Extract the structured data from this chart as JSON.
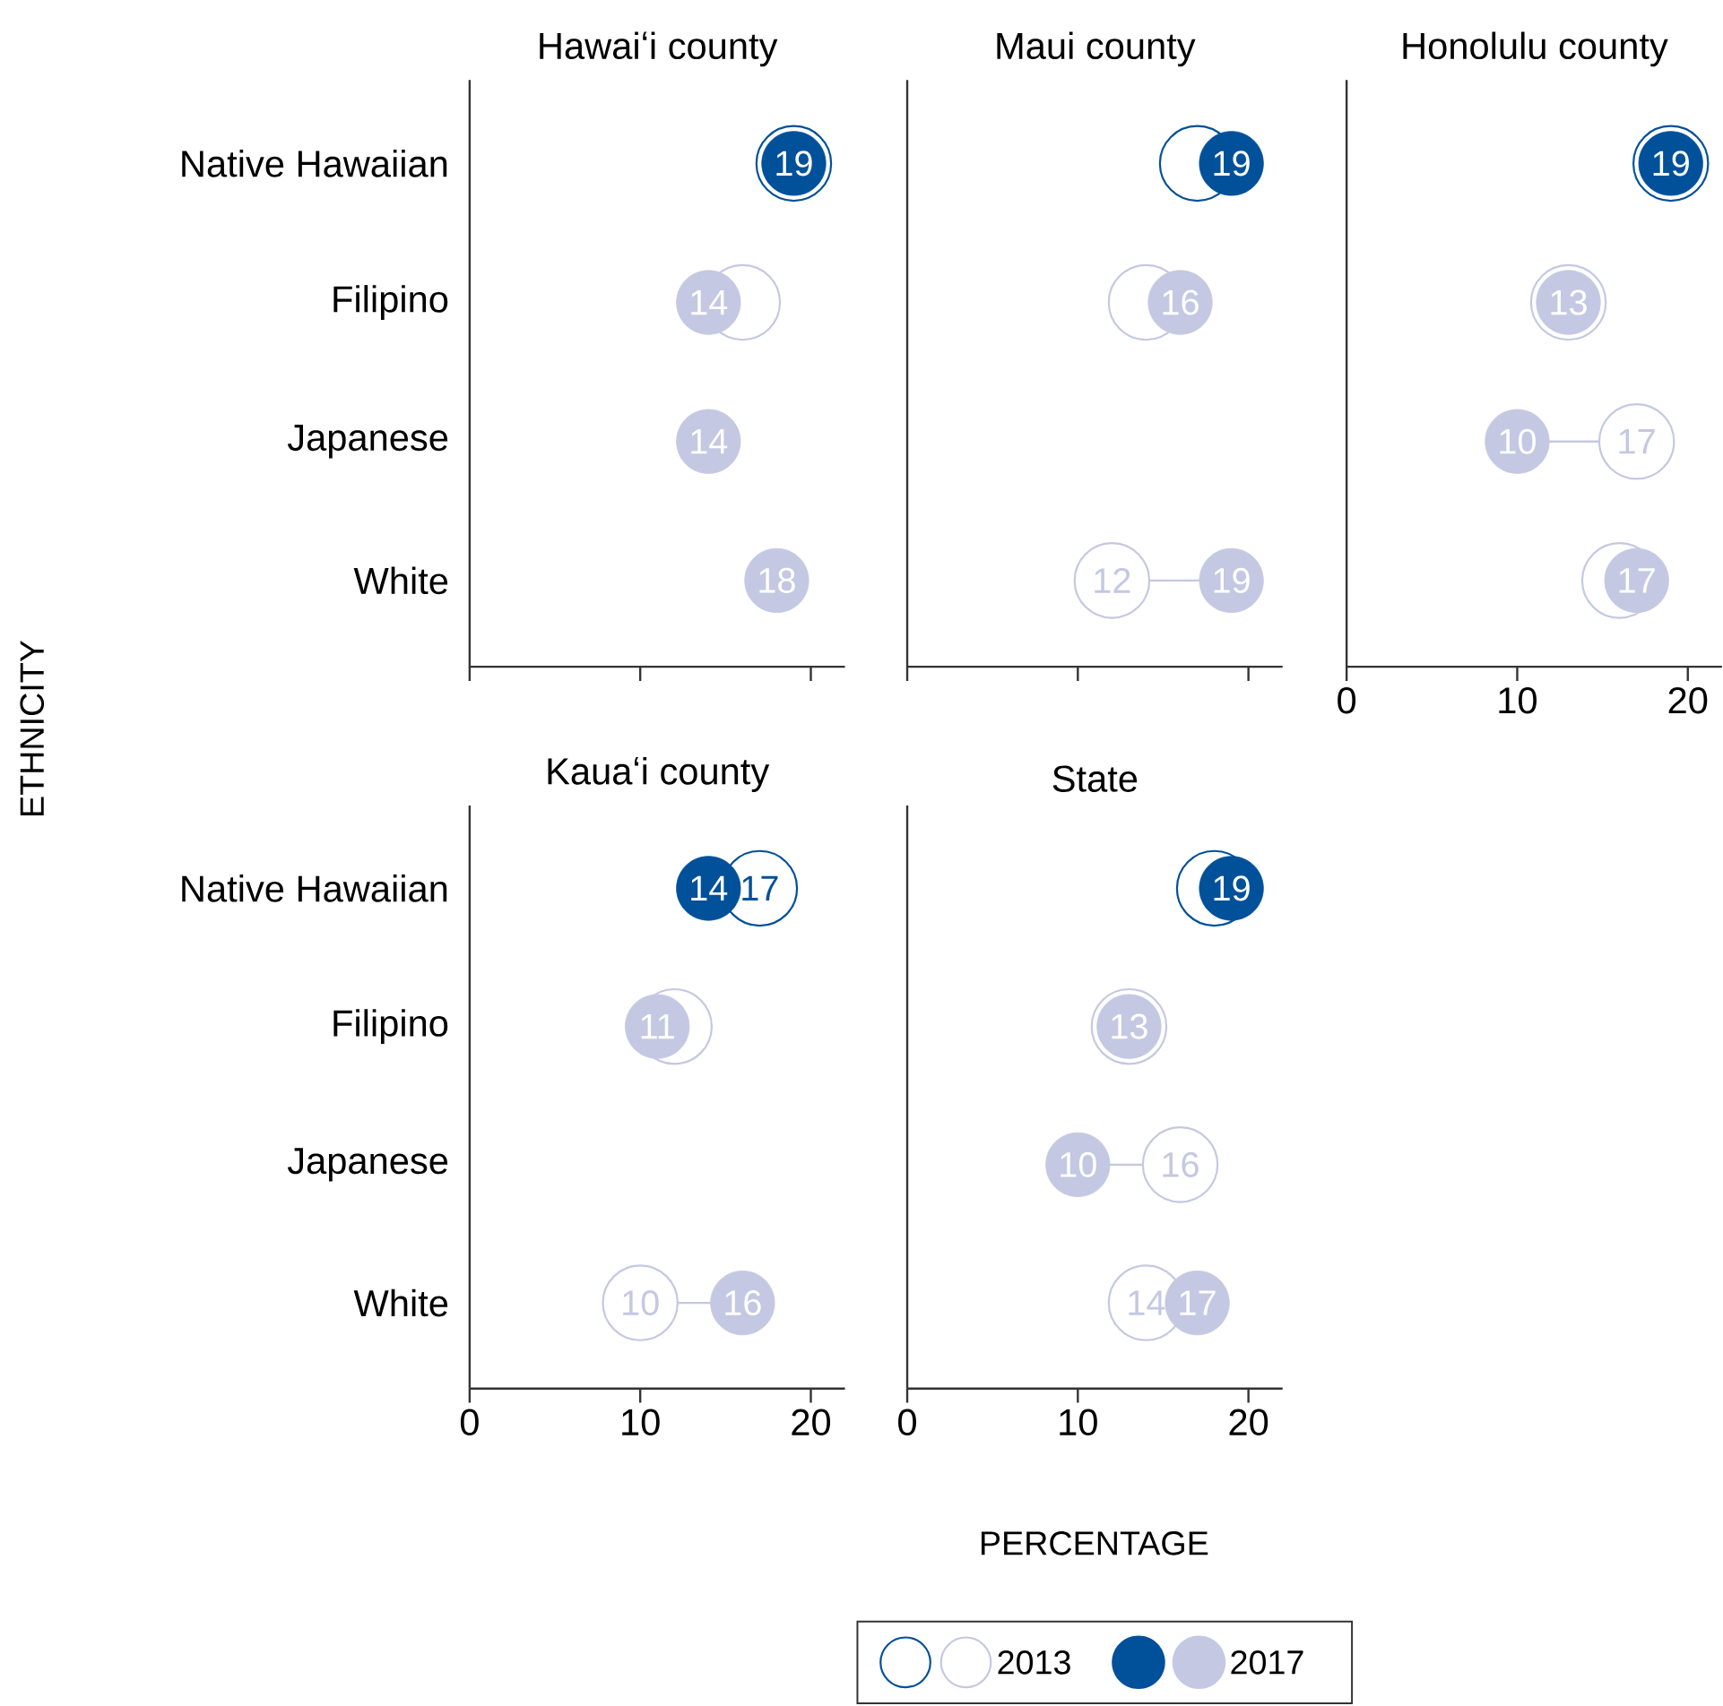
{
  "chart_data": [
    {
      "type": "scatter",
      "orientation": "horizontal",
      "title": "Hawaiʻi county",
      "ylabel": "ETHNICITY",
      "categories": [
        "Native Hawaiian",
        "Filipino",
        "Japanese",
        "White"
      ],
      "xlim": [
        0,
        22
      ],
      "xticks": [
        0,
        10,
        20
      ],
      "tick_labels": "y",
      "series": [
        {
          "marker": "circle-open",
          "colors": [
            "#00509a",
            "#c4c8e2",
            "#c4c8e2",
            "#c4c8e2"
          ],
          "values": [
            19,
            16,
            null,
            null
          ],
          "value_labels": [
            null,
            null,
            null,
            null
          ]
        },
        {
          "marker": "circle",
          "colors": [
            "#00509a",
            "#c4c8e2",
            "#c4c8e2",
            "#c4c8e2"
          ],
          "values": [
            19,
            14,
            14,
            18
          ],
          "value_labels": [
            "19",
            "14",
            "14",
            "18"
          ]
        }
      ]
    },
    {
      "type": "scatter",
      "orientation": "horizontal",
      "title": "Maui county",
      "categories": [
        null,
        null,
        null,
        null
      ],
      "xlim": [
        0,
        22
      ],
      "xticks": [
        0,
        10,
        20
      ],
      "tick_labels": false,
      "series": [
        {
          "marker": "circle-open",
          "colors": [
            "#00509a",
            "#c4c8e2",
            "#c4c8e2",
            "#c4c8e2"
          ],
          "values": [
            17,
            14,
            null,
            12
          ],
          "value_labels": [
            null,
            null,
            null,
            "12"
          ]
        },
        {
          "marker": "circle",
          "colors": [
            "#00509a",
            "#c4c8e2",
            "#c4c8e2",
            "#c4c8e2"
          ],
          "values": [
            19,
            16,
            null,
            19
          ],
          "value_labels": [
            "19",
            "16",
            null,
            "19"
          ]
        }
      ]
    },
    {
      "type": "scatter",
      "orientation": "horizontal",
      "title": "Honolulu county",
      "categories": [
        null,
        null,
        null,
        null
      ],
      "xlim": [
        0,
        22
      ],
      "xticks": [
        0,
        10,
        20
      ],
      "tick_labels": "x",
      "series": [
        {
          "marker": "circle-open",
          "colors": [
            "#00509a",
            "#c4c8e2",
            "#c4c8e2",
            "#c4c8e2"
          ],
          "values": [
            19,
            13,
            17,
            16
          ],
          "value_labels": [
            null,
            null,
            "17",
            null
          ]
        },
        {
          "marker": "circle",
          "colors": [
            "#00509a",
            "#c4c8e2",
            "#c4c8e2",
            "#c4c8e2"
          ],
          "values": [
            19,
            13,
            10,
            17
          ],
          "value_labels": [
            "19",
            "13",
            "10",
            "17"
          ]
        }
      ]
    },
    {
      "type": "scatter",
      "orientation": "horizontal",
      "title": "Kauaʻi county",
      "categories": [
        "Native Hawaiian",
        "Filipino",
        "Japanese",
        "White"
      ],
      "xlim": [
        0,
        22
      ],
      "xticks": [
        0,
        10,
        20
      ],
      "series": [
        {
          "marker": "circle-open",
          "colors": [
            "#00509a",
            "#c4c8e2",
            "#c4c8e2",
            "#c4c8e2"
          ],
          "values": [
            17,
            12,
            null,
            10
          ],
          "value_labels": [
            "17",
            null,
            null,
            "10"
          ]
        },
        {
          "marker": "circle",
          "colors": [
            "#00509a",
            "#c4c8e2",
            "#c4c8e2",
            "#c4c8e2"
          ],
          "values": [
            14,
            11,
            null,
            16
          ],
          "value_labels": [
            "14",
            "11",
            null,
            "16"
          ]
        }
      ]
    },
    {
      "type": "scatter",
      "orientation": "horizontal",
      "title": "State",
      "xlabel": "PERCENTAGE",
      "categories": [
        null,
        null,
        null,
        null
      ],
      "xlim": [
        0,
        22
      ],
      "xticks": [
        0,
        10,
        20
      ],
      "tick_labels": "x",
      "legend": "bottom",
      "series": [
        {
          "name": "2013",
          "marker": "circle-open",
          "colors": [
            "#00509a",
            "#c4c8e2",
            "#c4c8e2",
            "#c4c8e2"
          ],
          "values": [
            18,
            13,
            16,
            14
          ],
          "value_labels": [
            null,
            null,
            "16",
            "14"
          ]
        },
        {
          "name": "2017",
          "marker": "circle",
          "colors": [
            "#00509a",
            "#c4c8e2",
            "#c4c8e2",
            "#c4c8e2"
          ],
          "values": [
            19,
            13,
            10,
            17
          ],
          "value_labels": [
            "19",
            "13",
            "10",
            "17"
          ]
        }
      ]
    }
  ]
}
